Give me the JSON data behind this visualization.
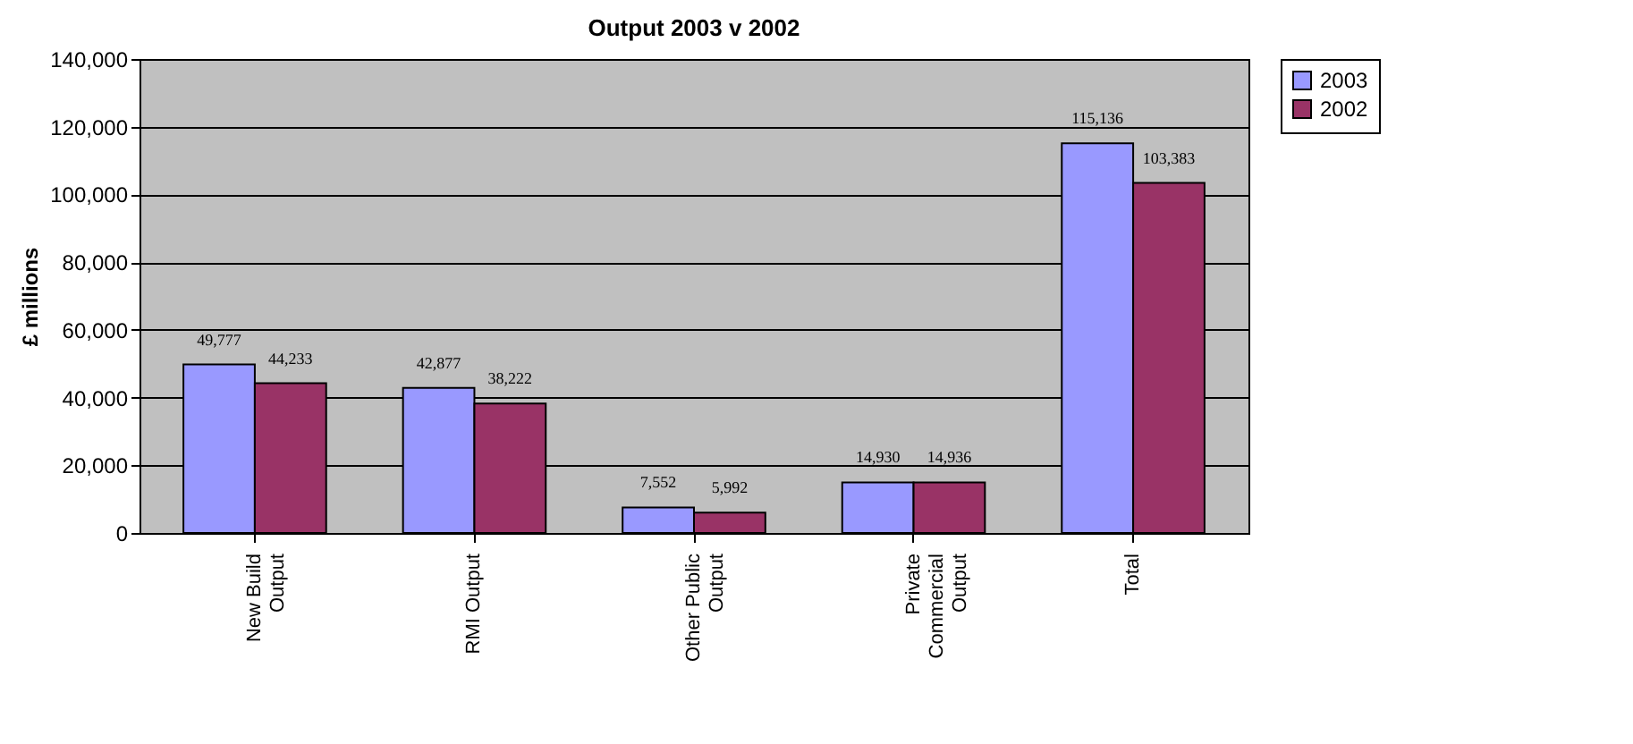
{
  "chart_data": {
    "type": "bar",
    "title": "Output 2003 v 2002",
    "ylabel": "£ millions",
    "categories": [
      "New Build Output",
      "RMI Output",
      "Other Public Output",
      "Private Commercial Output",
      "Total"
    ],
    "series": [
      {
        "name": "2003",
        "color": "#9999ff",
        "values": [
          49777,
          42877,
          7552,
          14930,
          115136
        ],
        "value_labels": [
          "49,777",
          "42,877",
          "7,552",
          "14,930",
          "115,136"
        ]
      },
      {
        "name": "2002",
        "color": "#993366",
        "values": [
          44233,
          38222,
          5992,
          14936,
          103383
        ],
        "value_labels": [
          "44,233",
          "38,222",
          "5,992",
          "14,936",
          "103,383"
        ]
      }
    ],
    "ylim": [
      0,
      140000
    ],
    "yticks": [
      0,
      {
        "value": 20000,
        "label": "20,000"
      },
      {
        "value": 40000,
        "label": "40,000"
      },
      {
        "value": 60000,
        "label": "60,000"
      },
      {
        "value": 80000,
        "label": "80,000"
      },
      {
        "value": 100000,
        "label": "100,000"
      },
      {
        "value": 120000,
        "label": "120,000"
      },
      {
        "value": 140000,
        "label": "140,000"
      }
    ],
    "grid": "y",
    "legend": "right",
    "data_labels": true
  }
}
